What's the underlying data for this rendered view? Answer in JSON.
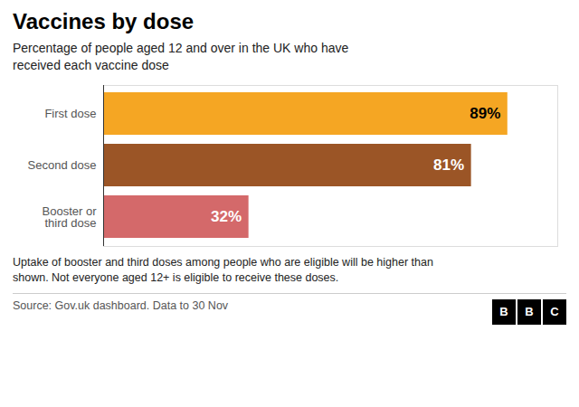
{
  "chart_data": {
    "type": "bar",
    "orientation": "horizontal",
    "title": "Vaccines by dose",
    "subtitle": "Percentage of people aged 12 and over in the UK who have\nreceived each vaccine dose",
    "categories": [
      "First dose",
      "Second dose",
      "Booster or\nthird dose"
    ],
    "values": [
      89,
      81,
      32
    ],
    "value_labels": [
      "89%",
      "81%",
      "32%"
    ],
    "data_labels": true,
    "colors": [
      "#F5A623",
      "#9B5526",
      "#D4696A"
    ],
    "xlim": [
      0,
      100
    ],
    "tick_labels": "y",
    "grid": false,
    "footnote": "Uptake of booster and third doses among people who are eligible will be higher than\nshown. Not everyone aged 12+ is eligible to receive these doses.",
    "source": "Source: Gov.uk dashboard. Data to 30 Nov",
    "logo": "BBC"
  }
}
